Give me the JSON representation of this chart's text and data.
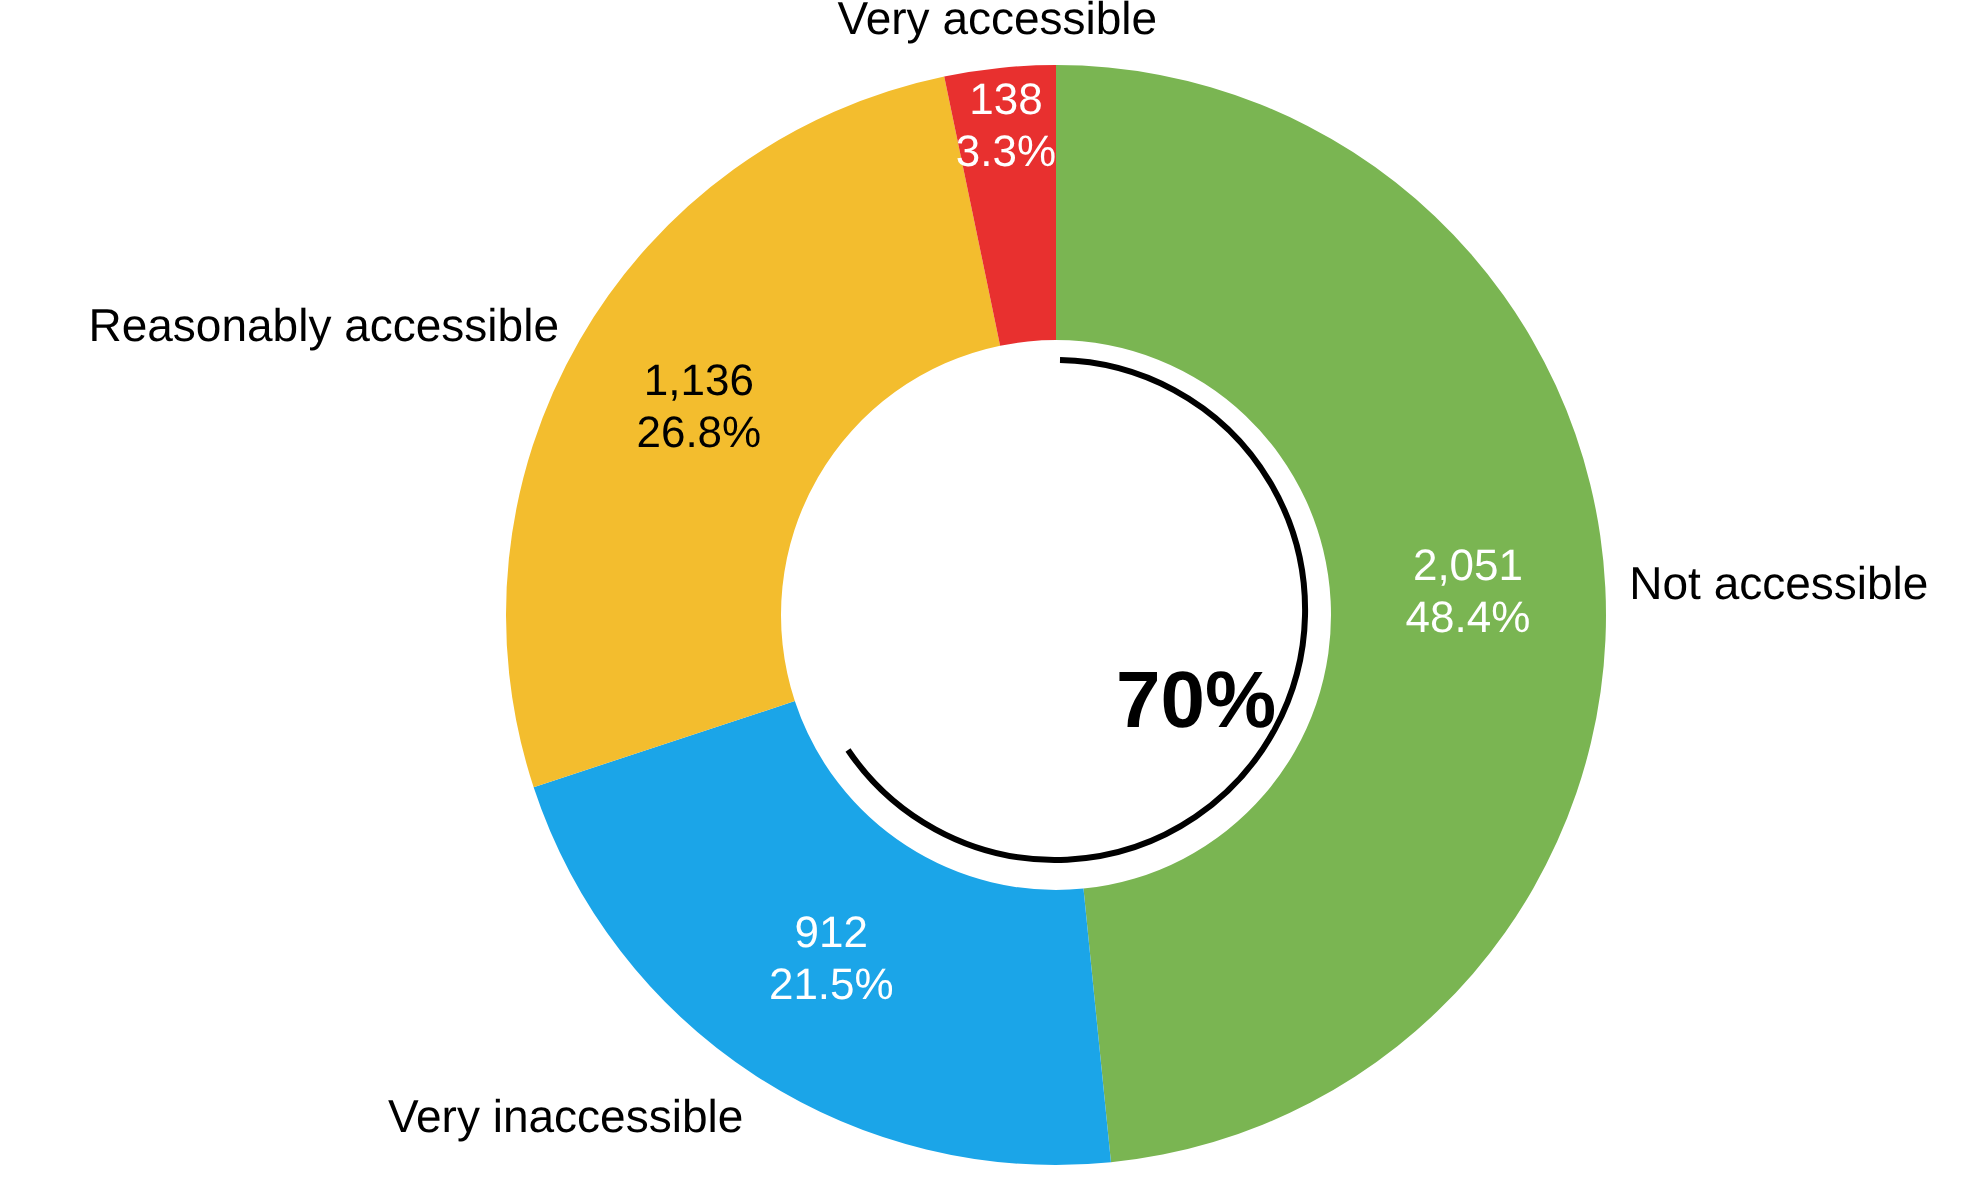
{
  "chart_data": {
    "type": "donut",
    "categories": [
      "Not accessible",
      "Very inaccessible",
      "Reasonably accessible",
      "Very accessible"
    ],
    "values": [
      2051,
      912,
      1136,
      138
    ],
    "colors": [
      "#7ab552",
      "#1ba5e8",
      "#f3bd2e",
      "#e8302f"
    ],
    "value_labels": [
      "2,051\n48.4%",
      "912\n21.5%",
      "1,136\n26.8%",
      "138\n3.3%"
    ],
    "annotations": [
      "70%"
    ],
    "legend": false
  }
}
